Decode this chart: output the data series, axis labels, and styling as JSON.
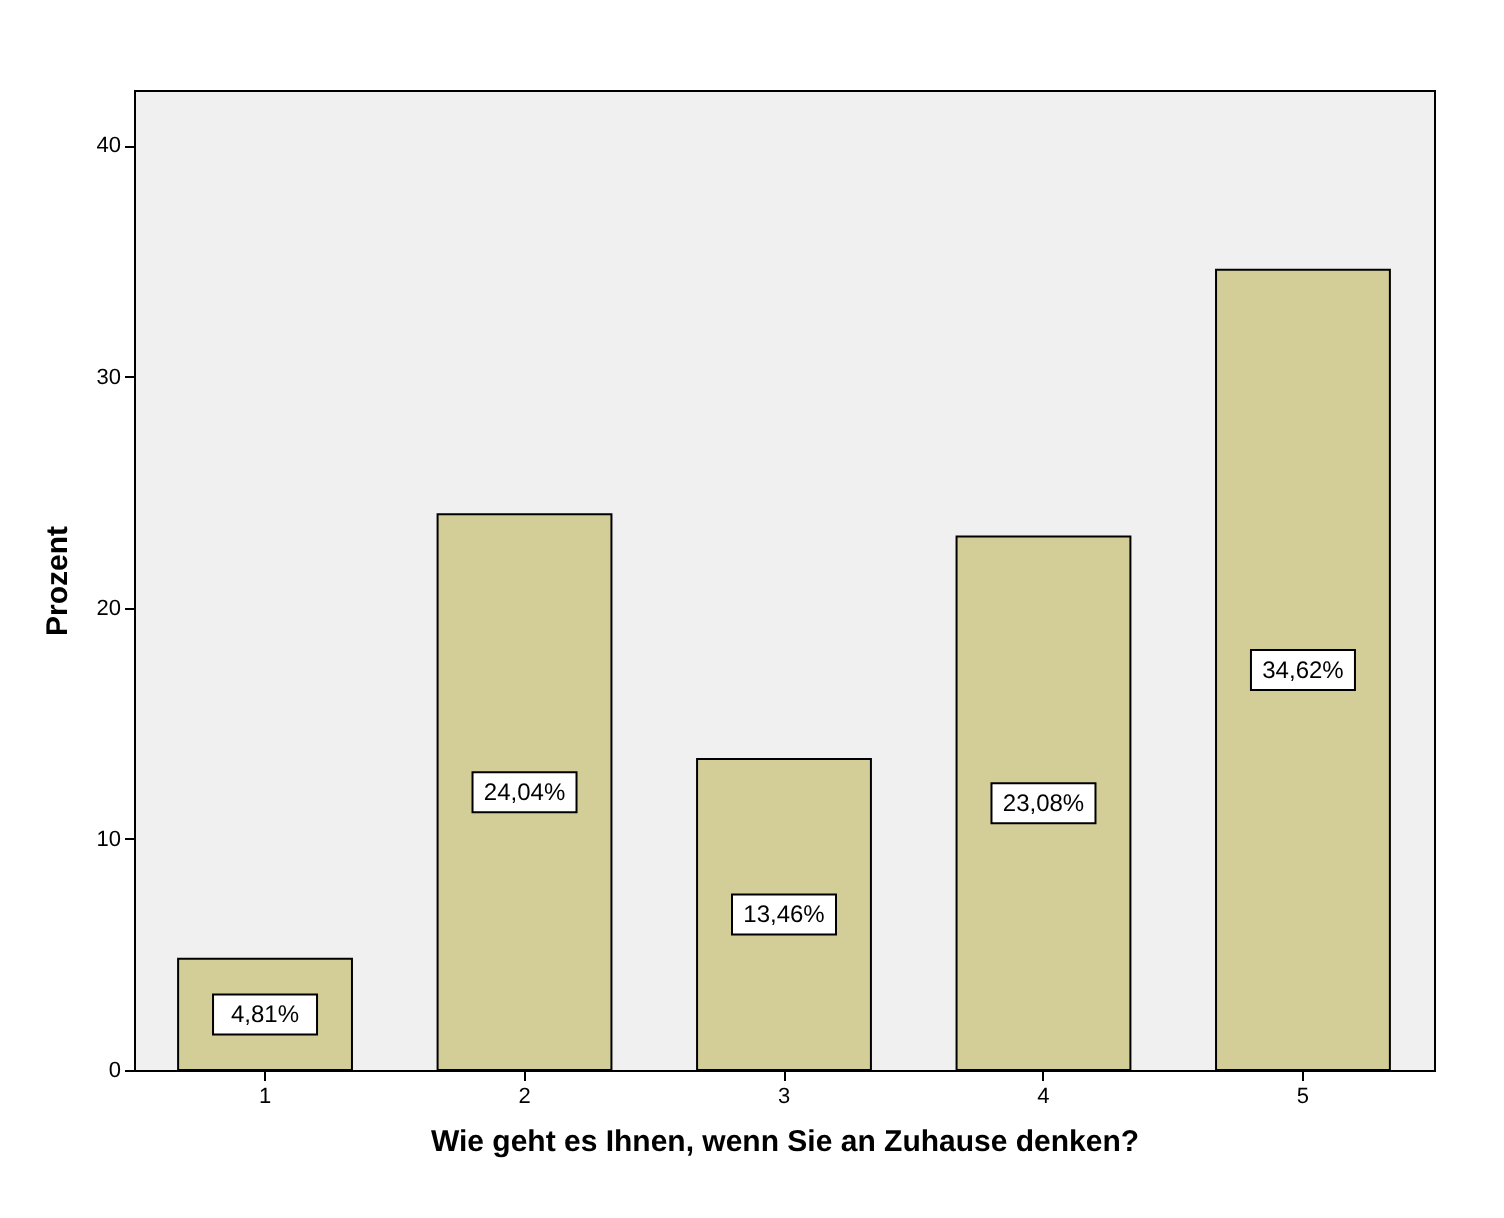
{
  "chart_data": {
    "type": "bar",
    "xlabel": "Wie geht es Ihnen, wenn Sie an Zuhause denken?",
    "ylabel": "Prozent",
    "categories": [
      "1",
      "2",
      "3",
      "4",
      "5"
    ],
    "values": [
      4.81,
      24.04,
      13.46,
      23.08,
      34.62
    ],
    "value_labels": [
      "4,81%",
      "24,04%",
      "13,46%",
      "23,08%",
      "34,62%"
    ],
    "color": "#d3ce97",
    "ylim": [
      0,
      42.4
    ],
    "yticks": [
      0,
      10,
      20,
      30,
      40
    ],
    "grid": false
  }
}
